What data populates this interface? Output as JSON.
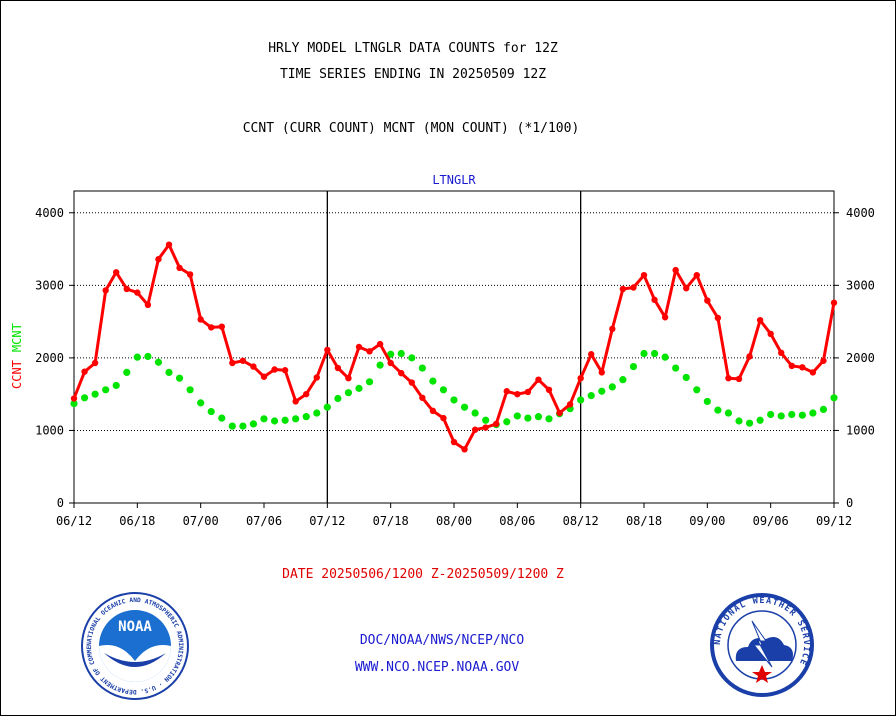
{
  "header": {
    "title_line1": "HRLY MODEL LTNGLR DATA COUNTS for 12Z",
    "title_line2": "TIME SERIES ENDING IN 20250509 12Z",
    "subtitle": "CCNT (CURR COUNT) MCNT (MON COUNT) (*1/100)"
  },
  "chart_data": {
    "type": "line",
    "title": "LTNGLR",
    "ylabel_series": [
      "CCNT",
      "MCNT"
    ],
    "ylim": [
      0,
      4300
    ],
    "yticks": [
      0,
      1000,
      2000,
      3000,
      4000
    ],
    "ytick_labels": [
      "0",
      "1000",
      "2000",
      "3000",
      "4000"
    ],
    "xlim": [
      0,
      72
    ],
    "xticks": [
      0,
      6,
      12,
      18,
      24,
      30,
      36,
      42,
      48,
      54,
      60,
      66,
      72
    ],
    "xtick_labels": [
      "06/12",
      "06/18",
      "07/00",
      "07/06",
      "07/12",
      "07/18",
      "08/00",
      "08/06",
      "08/12",
      "08/18",
      "09/00",
      "09/06",
      "09/12"
    ],
    "day_dividers": [
      24,
      48
    ],
    "grid": true,
    "series": [
      {
        "name": "CCNT",
        "color": "#ff0000",
        "x": [
          0,
          1,
          2,
          3,
          4,
          5,
          6,
          7,
          8,
          9,
          10,
          11,
          12,
          13,
          14,
          15,
          16,
          17,
          18,
          19,
          20,
          21,
          22,
          23,
          24,
          25,
          26,
          27,
          28,
          29,
          30,
          31,
          32,
          33,
          34,
          35,
          36,
          37,
          38,
          39,
          40,
          41,
          42,
          43,
          44,
          45,
          46,
          47,
          48,
          49,
          50,
          51,
          52,
          53,
          54,
          55,
          56,
          57,
          58,
          59,
          60,
          61,
          62,
          63,
          64,
          65,
          66,
          67,
          68,
          69,
          70,
          71,
          72
        ],
        "values": [
          1440,
          1810,
          1930,
          2930,
          3180,
          2950,
          2900,
          2730,
          3360,
          3560,
          3240,
          3150,
          2530,
          2420,
          2430,
          1930,
          1960,
          1880,
          1740,
          1840,
          1830,
          1400,
          1500,
          1730,
          2110,
          1860,
          1720,
          2150,
          2090,
          2190,
          1930,
          1790,
          1660,
          1450,
          1270,
          1170,
          840,
          740,
          1010,
          1040,
          1090,
          1540,
          1500,
          1530,
          1700,
          1560,
          1240,
          1360,
          1720,
          2050,
          1800,
          2400,
          2950,
          2970,
          3140,
          2800,
          2560,
          3210,
          2960,
          3140,
          2790,
          2550,
          1720,
          1710,
          2020,
          2520,
          2330,
          2070,
          1890,
          1870,
          1800,
          1960,
          2760
        ]
      },
      {
        "name": "MCNT",
        "color": "#00e400",
        "x": [
          0,
          1,
          2,
          3,
          4,
          5,
          6,
          7,
          8,
          9,
          10,
          11,
          12,
          13,
          14,
          15,
          16,
          17,
          18,
          19,
          20,
          21,
          22,
          23,
          24,
          25,
          26,
          27,
          28,
          29,
          30,
          31,
          32,
          33,
          34,
          35,
          36,
          37,
          38,
          39,
          40,
          41,
          42,
          43,
          44,
          45,
          46,
          47,
          48,
          49,
          50,
          51,
          52,
          53,
          54,
          55,
          56,
          57,
          58,
          59,
          60,
          61,
          62,
          63,
          64,
          65,
          66,
          67,
          68,
          69,
          70,
          71,
          72
        ],
        "values": [
          1370,
          1450,
          1500,
          1560,
          1620,
          1800,
          2010,
          2020,
          1940,
          1800,
          1720,
          1560,
          1380,
          1260,
          1170,
          1060,
          1060,
          1090,
          1160,
          1130,
          1140,
          1160,
          1190,
          1240,
          1320,
          1440,
          1520,
          1580,
          1670,
          1900,
          2050,
          2060,
          2000,
          1860,
          1680,
          1560,
          1420,
          1320,
          1240,
          1140,
          1080,
          1120,
          1200,
          1170,
          1190,
          1160,
          1230,
          1300,
          1420,
          1480,
          1540,
          1600,
          1700,
          1880,
          2060,
          2060,
          2010,
          1860,
          1730,
          1560,
          1400,
          1280,
          1240,
          1130,
          1100,
          1140,
          1220,
          1200,
          1220,
          1210,
          1240,
          1290,
          1450
        ]
      }
    ]
  },
  "date_range": "DATE 20250506/1200 Z-20250509/1200 Z",
  "footer": {
    "line1": "DOC/NOAA/NWS/NCEP/NCO",
    "line2": "WWW.NCO.NCEP.NOAA.GOV"
  },
  "logos": {
    "left_text": "NOAA",
    "left_ring_text": "NATIONAL OCEANIC AND ATMOSPHERIC ADMINISTRATION · U.S. DEPARTMENT OF COMMERCE",
    "right_ring_text": "NATIONAL WEATHER SERVICE"
  },
  "colors": {
    "ccnt": "#ff0000",
    "mcnt": "#00e400",
    "chart_title": "#1a1ad0",
    "date_range": "#e00000",
    "footer": "#1a1ad0"
  }
}
